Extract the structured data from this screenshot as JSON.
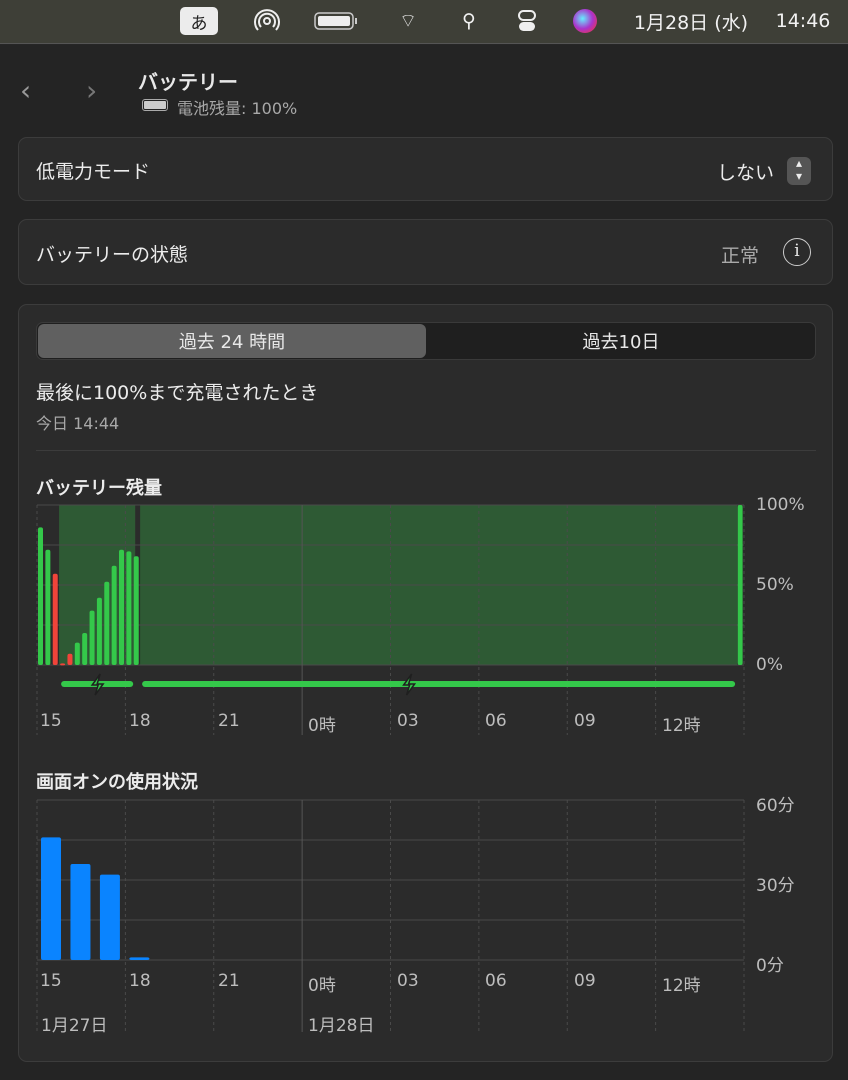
{
  "menubar": {
    "ime": "あ",
    "clock_date": "1月28日 (水)",
    "clock_time": "14:46",
    "icons": [
      "airdrop-icon",
      "battery-icon",
      "wifi-icon",
      "search-icon",
      "control-center-icon",
      "siri-icon"
    ]
  },
  "header": {
    "title": "バッテリー",
    "subtitle": "電池残量: 100%"
  },
  "low_power": {
    "label": "低電力モード",
    "value": "しない"
  },
  "health": {
    "label": "バッテリーの状態",
    "value": "正常"
  },
  "tabs": [
    {
      "label": "過去 24 時間",
      "selected": true
    },
    {
      "label": "過去10日",
      "selected": false
    }
  ],
  "last_charge": {
    "title": "最後に100%まで充電されたとき",
    "time": "今日 14:44"
  },
  "colors": {
    "battery_bar": "#34c84a",
    "low_battery_bar": "#f0443a",
    "charging_area": "#2e5a34",
    "usage_bar": "#0a84ff"
  },
  "x_ticks": [
    "15",
    "18",
    "21",
    "0時",
    "03",
    "06",
    "09",
    "12時"
  ],
  "day_labels": [
    "1月27日",
    "1月28日"
  ],
  "chart_data": [
    {
      "type": "bar",
      "title": "バッテリー残量",
      "y_ticks": [
        "100%",
        "50%",
        "0%"
      ],
      "ylim": [
        0,
        100
      ],
      "x": [
        "15:00",
        "15:15",
        "15:30",
        "15:45",
        "16:00",
        "16:15",
        "16:30",
        "16:45",
        "17:00",
        "17:15",
        "17:30",
        "17:45",
        "18:00",
        "18:15",
        "14:45"
      ],
      "values": [
        86,
        72,
        57,
        1,
        7,
        14,
        20,
        34,
        42,
        52,
        62,
        72,
        71,
        68,
        100
      ],
      "low": [
        false,
        false,
        true,
        true,
        true,
        false,
        false,
        false,
        false,
        false,
        false,
        false,
        false,
        false,
        false
      ],
      "charging_periods": [
        [
          "15:45",
          "18:20"
        ],
        [
          "18:30",
          "14:46"
        ]
      ]
    },
    {
      "type": "bar",
      "title": "画面オンの使用状況",
      "y_ticks": [
        "60分",
        "30分",
        "0分"
      ],
      "ylim": [
        0,
        60
      ],
      "x": [
        "15:00",
        "16:00",
        "17:00",
        "18:00"
      ],
      "values": [
        46,
        36,
        32,
        1
      ]
    }
  ]
}
